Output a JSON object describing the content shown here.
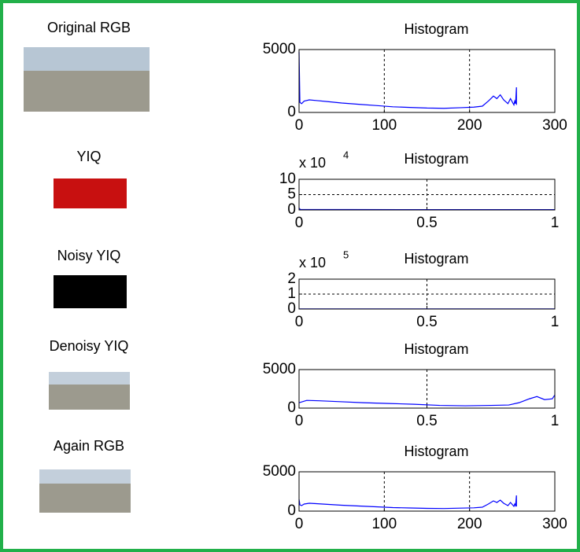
{
  "images": [
    {
      "title": "Original RGB"
    },
    {
      "title": "YIQ"
    },
    {
      "title": "Noisy YIQ"
    },
    {
      "title": "Denoisy YIQ"
    },
    {
      "title": "Again RGB"
    }
  ],
  "chart_data": [
    {
      "type": "line",
      "title": "Histogram",
      "color": "#0000ff",
      "grid": true,
      "x": [
        0,
        1,
        3,
        6,
        12,
        20,
        35,
        50,
        70,
        90,
        110,
        130,
        150,
        170,
        190,
        205,
        215,
        222,
        228,
        232,
        236,
        240,
        245,
        248,
        252,
        253,
        254,
        255,
        255
      ],
      "values": [
        4800,
        800,
        700,
        900,
        1000,
        950,
        850,
        750,
        650,
        550,
        450,
        400,
        350,
        330,
        380,
        420,
        500,
        900,
        1300,
        1100,
        1400,
        1000,
        700,
        1100,
        600,
        900,
        700,
        2000,
        600
      ],
      "xlim": [
        0,
        300
      ],
      "xticks": [
        0,
        100,
        200,
        300
      ],
      "ylim": [
        0,
        5000
      ],
      "yticks": [
        0,
        5000
      ]
    },
    {
      "type": "line",
      "title": "Histogram",
      "color": "#0000ff",
      "grid": true,
      "y_scale_label": "x 10",
      "y_scale_exponent": "4",
      "x": [
        0,
        0.005,
        0.2,
        0.5,
        0.8,
        1
      ],
      "values": [
        0.6,
        0.15,
        0.12,
        0.1,
        0.1,
        0.1
      ],
      "xlim": [
        0,
        1
      ],
      "xticks": [
        0,
        0.5,
        1
      ],
      "ylim": [
        0,
        10
      ],
      "yticks": [
        0,
        5,
        10
      ]
    },
    {
      "type": "line",
      "title": "Histogram",
      "color": "#0000ff",
      "grid": true,
      "y_scale_label": "x 10",
      "y_scale_exponent": "5",
      "x": [
        0,
        0.2,
        0.5,
        0.8,
        1
      ],
      "values": [
        0.01,
        0.01,
        0.01,
        0.01,
        0.01
      ],
      "xlim": [
        0,
        1
      ],
      "xticks": [
        0,
        0.5,
        1
      ],
      "ylim": [
        0,
        2
      ],
      "yticks": [
        0,
        1,
        2
      ]
    },
    {
      "type": "line",
      "title": "Histogram",
      "color": "#0000ff",
      "grid": true,
      "x": [
        0,
        0.03,
        0.08,
        0.15,
        0.25,
        0.35,
        0.45,
        0.55,
        0.65,
        0.75,
        0.82,
        0.86,
        0.9,
        0.93,
        0.96,
        0.99,
        1
      ],
      "values": [
        700,
        1000,
        950,
        850,
        700,
        600,
        500,
        350,
        300,
        350,
        400,
        700,
        1200,
        1500,
        1100,
        1200,
        1700
      ],
      "xlim": [
        0,
        1
      ],
      "xticks": [
        0,
        0.5,
        1
      ],
      "ylim": [
        0,
        5000
      ],
      "yticks": [
        0,
        5000
      ]
    },
    {
      "type": "line",
      "title": "Histogram",
      "color": "#0000ff",
      "grid": true,
      "x": [
        0,
        1,
        3,
        6,
        12,
        20,
        35,
        50,
        70,
        90,
        110,
        130,
        150,
        170,
        190,
        205,
        215,
        222,
        228,
        232,
        236,
        240,
        245,
        248,
        252,
        253,
        254,
        255,
        255
      ],
      "values": [
        1500,
        800,
        700,
        900,
        1000,
        950,
        850,
        750,
        650,
        550,
        450,
        400,
        350,
        330,
        380,
        420,
        500,
        900,
        1300,
        1100,
        1400,
        1000,
        700,
        1100,
        600,
        900,
        700,
        2000,
        600
      ],
      "xlim": [
        0,
        300
      ],
      "xticks": [
        0,
        100,
        200,
        300
      ],
      "ylim": [
        0,
        5000
      ],
      "yticks": [
        0,
        5000
      ]
    }
  ]
}
